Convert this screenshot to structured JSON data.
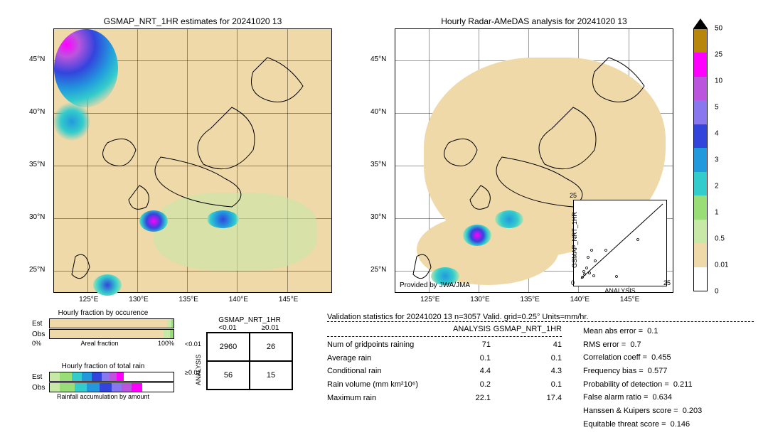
{
  "colorbar": {
    "ticks": [
      "50",
      "25",
      "10",
      "5",
      "4",
      "3",
      "2",
      "1",
      "0.5",
      "0.01",
      "0"
    ],
    "colors": [
      "#b8860b",
      "#ff00ff",
      "#bb55dd",
      "#8877ee",
      "#3344dd",
      "#2299dd",
      "#33cccc",
      "#99dd77",
      "#c8e8a8",
      "#f0d9a8",
      "#ffffff"
    ],
    "arrow_color": "#000000"
  },
  "left_map": {
    "title": "GSMAP_NRT_1HR estimates for 20241020 13",
    "x_ticks": [
      "125°E",
      "130°E",
      "135°E",
      "140°E",
      "145°E"
    ],
    "y_ticks": [
      "45°N",
      "40°N",
      "35°N",
      "30°N",
      "25°N"
    ],
    "bg_color": "#f0d9a8",
    "grid_color": "#000000"
  },
  "right_map": {
    "title": "Hourly Radar-AMeDAS analysis for 20241020 13",
    "x_ticks": [
      "125°E",
      "130°E",
      "135°E",
      "140°E",
      "145°E"
    ],
    "y_ticks": [
      "45°N",
      "40°N",
      "35°N",
      "30°N",
      "25°N"
    ],
    "attribution": "Provided by JWA/JMA",
    "bg_color": "#ffffff"
  },
  "scatter_inset": {
    "xlabel": "ANALYSIS",
    "ylabel": "GSMAP_NRT_1HR",
    "ticks": [
      "0",
      "5",
      "10",
      "15",
      "20",
      "25"
    ],
    "xmax": 25,
    "ymax": 25
  },
  "occurrence_bars": {
    "title": "Hourly fraction by occurence",
    "rows": [
      "Est",
      "Obs"
    ],
    "footer_left": "0%",
    "footer_mid": "Areal fraction",
    "footer_right": "100%",
    "est_segments": [
      {
        "start": 0,
        "end": 95,
        "color": "#f0d9a8"
      },
      {
        "start": 95,
        "end": 98,
        "color": "#c8e8a8"
      },
      {
        "start": 98,
        "end": 100,
        "color": "#99dd77"
      }
    ],
    "obs_segments": [
      {
        "start": 0,
        "end": 92,
        "color": "#f0d9a8"
      },
      {
        "start": 92,
        "end": 97,
        "color": "#c8e8a8"
      },
      {
        "start": 97,
        "end": 100,
        "color": "#99dd77"
      }
    ]
  },
  "totalrain_bars": {
    "title": "Hourly fraction of total rain",
    "rows": [
      "Est",
      "Obs"
    ],
    "footer": "Rainfall accumulation by amount",
    "est_segments": [
      {
        "start": 0,
        "end": 8,
        "color": "#c8e8a8"
      },
      {
        "start": 8,
        "end": 18,
        "color": "#99dd77"
      },
      {
        "start": 18,
        "end": 26,
        "color": "#33cccc"
      },
      {
        "start": 26,
        "end": 34,
        "color": "#2299dd"
      },
      {
        "start": 34,
        "end": 42,
        "color": "#3344dd"
      },
      {
        "start": 42,
        "end": 48,
        "color": "#8877ee"
      },
      {
        "start": 48,
        "end": 54,
        "color": "#bb55dd"
      },
      {
        "start": 54,
        "end": 60,
        "color": "#ff00ff"
      }
    ],
    "obs_segments": [
      {
        "start": 0,
        "end": 8,
        "color": "#c8e8a8"
      },
      {
        "start": 8,
        "end": 20,
        "color": "#99dd77"
      },
      {
        "start": 20,
        "end": 30,
        "color": "#33cccc"
      },
      {
        "start": 30,
        "end": 40,
        "color": "#2299dd"
      },
      {
        "start": 40,
        "end": 50,
        "color": "#3344dd"
      },
      {
        "start": 50,
        "end": 58,
        "color": "#8877ee"
      },
      {
        "start": 58,
        "end": 66,
        "color": "#bb55dd"
      },
      {
        "start": 66,
        "end": 75,
        "color": "#ff00ff"
      }
    ]
  },
  "contingency": {
    "title": "GSMAP_NRT_1HR",
    "col_headers": [
      "<0.01",
      "≥0.01"
    ],
    "row_label": "ANALYSIS",
    "row_headers": [
      "<0.01",
      "≥0.01"
    ],
    "cells": [
      [
        "2960",
        "26"
      ],
      [
        "56",
        "15"
      ]
    ]
  },
  "stats": {
    "title": "Validation statistics for 20241020 13  n=3057 Valid. grid=0.25° Units=mm/hr.",
    "col_headers": [
      "",
      "ANALYSIS",
      "GSMAP_NRT_1HR"
    ],
    "rows": [
      {
        "label": "Num of gridpoints raining",
        "a": "71",
        "b": "41"
      },
      {
        "label": "Average rain",
        "a": "0.1",
        "b": "0.1"
      },
      {
        "label": "Conditional rain",
        "a": "4.4",
        "b": "4.3"
      },
      {
        "label": "Rain volume (mm km²10⁶)",
        "a": "0.2",
        "b": "0.1"
      },
      {
        "label": "Maximum rain",
        "a": "22.1",
        "b": "17.4"
      }
    ],
    "metrics": [
      {
        "label": "Mean abs error =",
        "v": "0.1"
      },
      {
        "label": "RMS error =",
        "v": "0.7"
      },
      {
        "label": "Correlation coeff =",
        "v": "0.455"
      },
      {
        "label": "Frequency bias =",
        "v": "0.577"
      },
      {
        "label": "Probability of detection =",
        "v": "0.211"
      },
      {
        "label": "False alarm ratio =",
        "v": "0.634"
      },
      {
        "label": "Hanssen & Kuipers score =",
        "v": "0.203"
      },
      {
        "label": "Equitable threat score =",
        "v": "0.146"
      }
    ]
  }
}
